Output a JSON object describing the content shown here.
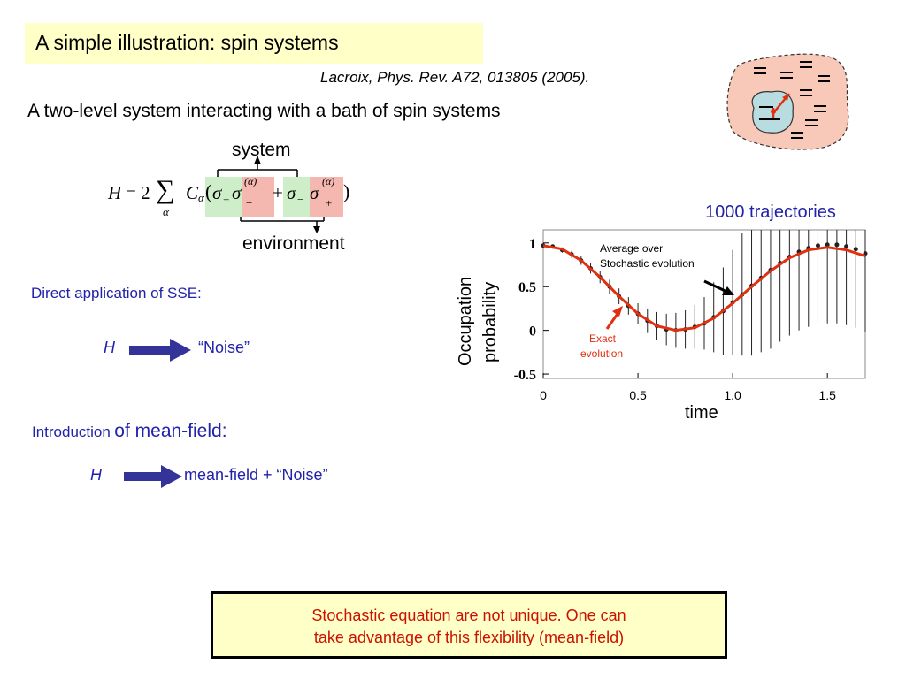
{
  "title": "A simple illustration: spin systems",
  "reference": "Lacroix, Phys. Rev. A72, 013805 (2005).",
  "subtitle": "A two-level system interacting with a bath of spin systems",
  "formula": {
    "label_system": "system",
    "label_environment": "environment",
    "H": "H",
    "eq": "= 2",
    "sum": "∑",
    "alpha": "α",
    "C": "C",
    "paren_open": "(",
    "paren_close": ")",
    "sigma": "σ",
    "plus": "+",
    "minus": "−",
    "superscript": "(α)",
    "op": "+"
  },
  "sse_label": "Direct application of SSE:",
  "map1": {
    "H": "H",
    "result": "“Noise”"
  },
  "intro": {
    "small": "Introduction",
    "large": "of mean-field:"
  },
  "map2": {
    "H": "H",
    "result": "mean-field + “Noise”"
  },
  "trajectories_label": "1000 trajectories",
  "chart_data": {
    "type": "line",
    "xlabel": "time",
    "ylabel_line1": "Occupation",
    "ylabel_line2": "probability",
    "xticks": [
      "0",
      "0.5",
      "1.0",
      "1.5"
    ],
    "yticks": [
      "1",
      "0.5",
      "0",
      "-0.5"
    ],
    "xlim": [
      0,
      1.7
    ],
    "ylim": [
      -0.55,
      1.15
    ],
    "annotation_avg_line1": "Average over",
    "annotation_avg_line2": "Stochastic evolution",
    "annotation_exact_line1": "Exact",
    "annotation_exact_line2": "evolution",
    "exact_color": "#e03010",
    "series": [
      {
        "name": "Exact evolution",
        "x": [
          0,
          0.1,
          0.2,
          0.3,
          0.4,
          0.5,
          0.6,
          0.7,
          0.8,
          0.9,
          1.0,
          1.1,
          1.2,
          1.3,
          1.4,
          1.5,
          1.6,
          1.7
        ],
        "values": [
          0.97,
          0.93,
          0.8,
          0.61,
          0.39,
          0.19,
          0.05,
          0.0,
          0.03,
          0.14,
          0.31,
          0.5,
          0.68,
          0.83,
          0.92,
          0.95,
          0.92,
          0.85
        ]
      },
      {
        "name": "Average over Stochastic evolution",
        "x": [
          0,
          0.05,
          0.1,
          0.15,
          0.2,
          0.25,
          0.3,
          0.35,
          0.4,
          0.45,
          0.5,
          0.55,
          0.6,
          0.65,
          0.7,
          0.75,
          0.8,
          0.85,
          0.9,
          0.95,
          1.0,
          1.05,
          1.1,
          1.15,
          1.2,
          1.25,
          1.3,
          1.35,
          1.4,
          1.45,
          1.5,
          1.55,
          1.6,
          1.65,
          1.7
        ],
        "values": [
          0.97,
          0.96,
          0.92,
          0.87,
          0.8,
          0.71,
          0.61,
          0.5,
          0.39,
          0.28,
          0.19,
          0.11,
          0.05,
          0.01,
          0.0,
          0.01,
          0.04,
          0.08,
          0.15,
          0.22,
          0.32,
          0.41,
          0.51,
          0.6,
          0.69,
          0.77,
          0.84,
          0.9,
          0.94,
          0.97,
          0.98,
          0.98,
          0.96,
          0.93,
          0.88
        ],
        "error": [
          0.02,
          0.02,
          0.03,
          0.04,
          0.05,
          0.06,
          0.07,
          0.08,
          0.09,
          0.1,
          0.12,
          0.14,
          0.16,
          0.18,
          0.2,
          0.22,
          0.25,
          0.3,
          0.4,
          0.5,
          0.6,
          0.7,
          0.8,
          0.85,
          0.9,
          0.9,
          0.9,
          0.9,
          0.9,
          0.9,
          0.9,
          0.9,
          0.9,
          0.9,
          0.9
        ]
      }
    ]
  },
  "note_line1": "Stochastic equation are not unique. One can",
  "note_line2": "take advantage of this flexibility (mean-field)",
  "colors": {
    "title_bg": "#ffffc8",
    "blue_text": "#2222aa",
    "arrow": "#333399",
    "note_text": "#cc1100",
    "highlight_green": "#cdeec8",
    "highlight_red": "#f4b8b0",
    "bath": "#f8c8b8",
    "system_blob": "#b8dce0"
  }
}
